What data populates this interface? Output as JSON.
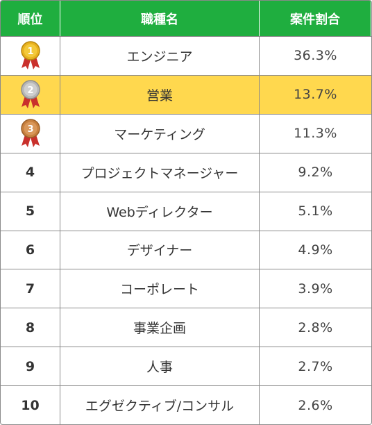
{
  "header": {
    "rank": "順位",
    "job": "職種名",
    "share": "案件割合"
  },
  "rows": [
    {
      "rank": "1",
      "job": "エンジニア",
      "share": "36.3%",
      "medal": "gold-medal-icon",
      "highlight": false
    },
    {
      "rank": "2",
      "job": "営業",
      "share": "13.7%",
      "medal": "silver-medal-icon",
      "highlight": true
    },
    {
      "rank": "3",
      "job": "マーケティング",
      "share": "11.3%",
      "medal": "bronze-medal-icon",
      "highlight": false
    },
    {
      "rank": "4",
      "job": "プロジェクトマネージャー",
      "share": "9.2%"
    },
    {
      "rank": "5",
      "job": "Webディレクター",
      "share": "5.1%"
    },
    {
      "rank": "6",
      "job": "デザイナー",
      "share": "4.9%"
    },
    {
      "rank": "7",
      "job": "コーポレート",
      "share": "3.9%"
    },
    {
      "rank": "8",
      "job": "事業企画",
      "share": "2.8%"
    },
    {
      "rank": "9",
      "job": "人事",
      "share": "2.7%"
    },
    {
      "rank": "10",
      "job": "エグゼクティブ/コンサル",
      "share": "2.6%"
    }
  ],
  "colors": {
    "header_bg": "#1fae3f",
    "highlight_bg": "#ffd84e",
    "gold": "#e9b21f",
    "silver": "#b7b7b7",
    "bronze": "#c8813f",
    "ribbon": "#c9302c"
  }
}
